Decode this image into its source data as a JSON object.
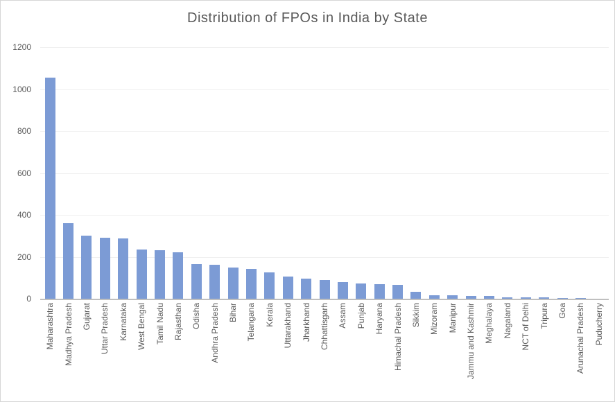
{
  "window": {
    "background": "#ffffff",
    "border_color": "#d6d6d6"
  },
  "colors": {
    "bar": "#7c9bd5",
    "title_text": "#595959",
    "tick_text": "#595959",
    "gridline": "#f0f0f0",
    "axis_line": "#bfbfbf"
  },
  "chart_data": {
    "type": "bar",
    "title": "Distribution of FPOs in India by State",
    "xlabel": "",
    "ylabel": "",
    "ylim": [
      0,
      1200
    ],
    "yticks": [
      0,
      200,
      400,
      600,
      800,
      1000,
      1200
    ],
    "grid": true,
    "legend": false,
    "bar_color": "#7c9bd5",
    "categories": [
      "Maharashtra",
      "Madhya Pradesh",
      "Gujarat",
      "Uttar Pradesh",
      "Karnataka",
      "West Bengal",
      "Tamil Nadu",
      "Rajasthan",
      "Odisha",
      "Andhra Pradesh",
      "Bihar",
      "Telangana",
      "Kerala",
      "Uttarakhand",
      "Jharkhand",
      "Chhattisgarh",
      "Assam",
      "Punjab",
      "Haryana",
      "Himachal Pradesh",
      "Sikkim",
      "Mizoram",
      "Manipur",
      "Jammu and Kashmir",
      "Meghalaya",
      "Nagaland",
      "NCT of Delhi",
      "Tripura",
      "Goa",
      "Arunachal Pradesh",
      "Puducherry"
    ],
    "values": [
      1055,
      360,
      300,
      291,
      288,
      235,
      232,
      220,
      166,
      163,
      150,
      143,
      126,
      107,
      95,
      89,
      79,
      72,
      70,
      66,
      33,
      18,
      16,
      14,
      12,
      8,
      6,
      5,
      4,
      2,
      1
    ]
  }
}
